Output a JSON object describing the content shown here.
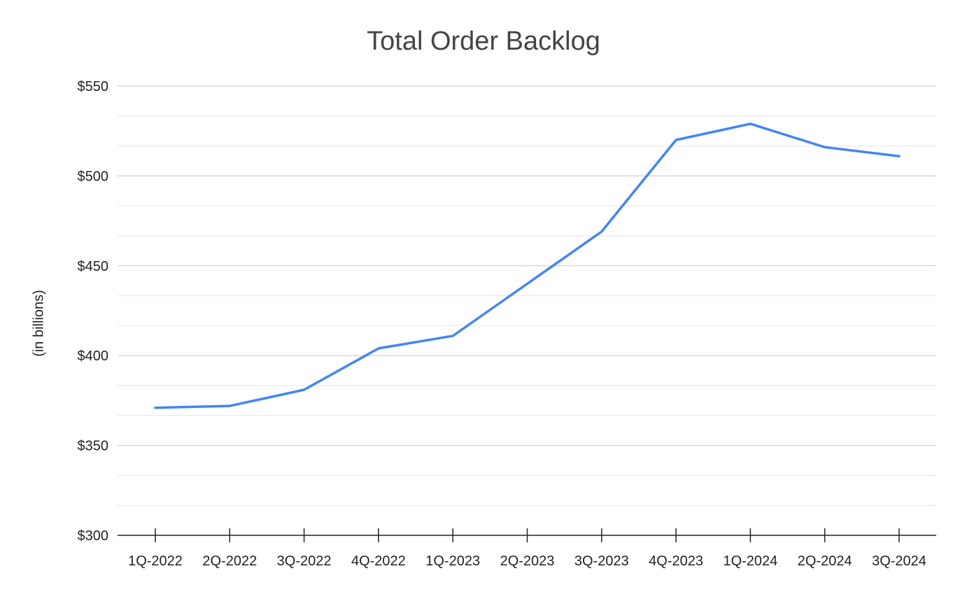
{
  "chart_data": {
    "type": "line",
    "title": "Total Order Backlog",
    "xlabel": "",
    "ylabel": "(in billions)",
    "categories": [
      "1Q-2022",
      "2Q-2022",
      "3Q-2022",
      "4Q-2022",
      "1Q-2023",
      "2Q-2023",
      "3Q-2023",
      "4Q-2023",
      "1Q-2024",
      "2Q-2024",
      "3Q-2024"
    ],
    "series": [
      {
        "values": [
          371,
          372,
          381,
          404,
          411,
          440,
          469,
          520,
          529,
          516,
          511
        ],
        "color": "#4285f4"
      }
    ],
    "ylim": [
      300,
      550
    ],
    "yticks": [
      300,
      350,
      400,
      450,
      500,
      550
    ],
    "ytick_labels": [
      "$300",
      "$350",
      "$400",
      "$450",
      "$500",
      "$550"
    ],
    "minor_gridlines": true,
    "grid": true,
    "legend": "none",
    "colors": {
      "line": "#4285f4",
      "major_grid": "#c8c8c8",
      "minor_grid": "#e6e6e6",
      "axis": "#222222"
    }
  }
}
